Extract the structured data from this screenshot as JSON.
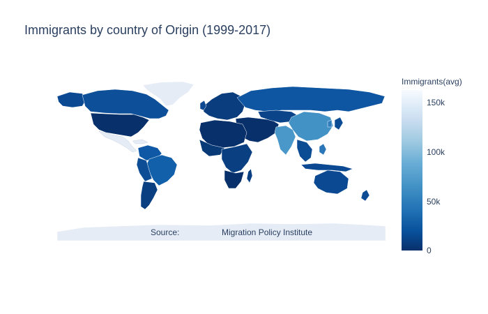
{
  "title": "Immigrants by country of Origin (1999-2017)",
  "colorbar": {
    "title": "Immigrants(avg)",
    "ticks": [
      "0",
      "50k",
      "100k",
      "150k"
    ],
    "tick_values": [
      0,
      50000,
      100000,
      150000
    ],
    "range": [
      0,
      165000
    ],
    "colors": [
      "#08306b",
      "#08519c",
      "#2171b5",
      "#4292c6",
      "#6baed6",
      "#9ecae1",
      "#c6dbef",
      "#deebf7",
      "#f7fbff"
    ]
  },
  "annotation": {
    "label": "Source:",
    "text": "Migration Policy Institute"
  },
  "colors": {
    "land_no_data": "#e5ecf6",
    "border": "#ffffff",
    "title": "#2a3f5f"
  }
}
